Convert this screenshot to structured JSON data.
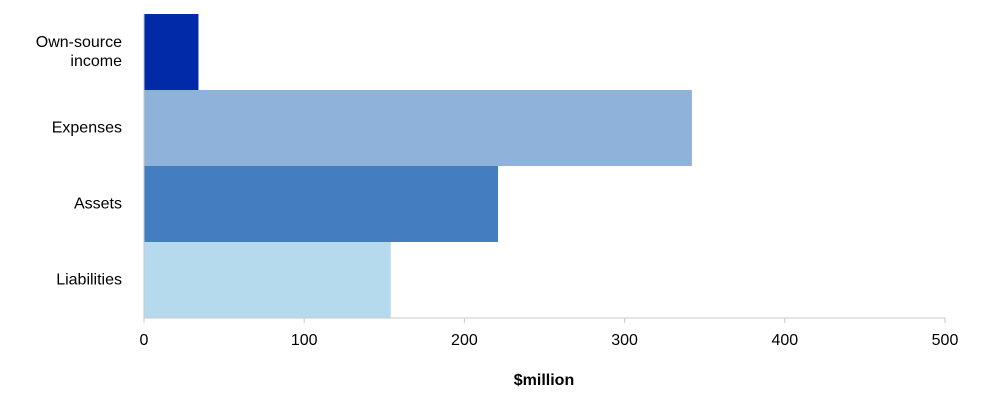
{
  "chart_data": {
    "type": "bar",
    "orientation": "horizontal",
    "categories": [
      "Own-source income",
      "Expenses",
      "Assets",
      "Liabilities"
    ],
    "values": [
      34,
      342,
      221,
      154
    ],
    "colors": [
      "#002aa8",
      "#8fb2da",
      "#447ec0",
      "#b5daee"
    ],
    "x_label": "$million",
    "xlim": [
      0,
      500
    ],
    "xticks": [
      0,
      100,
      200,
      300,
      400,
      500
    ]
  }
}
